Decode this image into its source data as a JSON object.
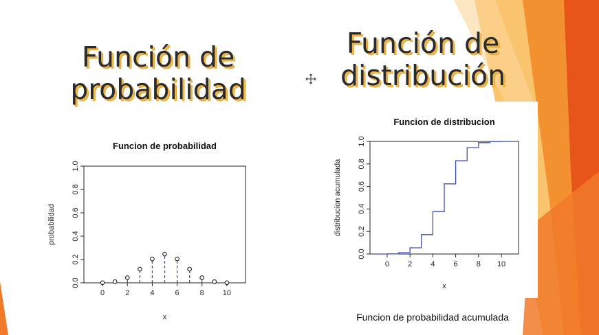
{
  "slide": {
    "title_left_lines": [
      "Función de",
      "probabilidad"
    ],
    "title_right_lines": [
      "Función de",
      "distribución"
    ],
    "caption": "Funcion de probabilidad acumulada",
    "colors": {
      "orange": "#f07a2a",
      "dark_orange": "#e8541a",
      "light_orange": "#f9a13c",
      "text": "#2b2b2b",
      "title_shadow": "#f2b84b"
    },
    "cursor_icon": "move-cursor-icon"
  },
  "chart_data": [
    {
      "type": "scatter",
      "title": "Funcion de probabilidad",
      "xlabel": "x",
      "ylabel": "probabilidad",
      "x": [
        0,
        1,
        2,
        3,
        4,
        5,
        6,
        7,
        8,
        9,
        10
      ],
      "y": [
        0.001,
        0.01,
        0.044,
        0.117,
        0.205,
        0.246,
        0.205,
        0.117,
        0.044,
        0.01,
        0.001
      ],
      "xlim": [
        -1.5,
        11.5
      ],
      "ylim": [
        0,
        1.0
      ],
      "xticks": [
        0,
        2,
        4,
        6,
        8,
        10
      ],
      "yticks": [
        0.0,
        0.2,
        0.4,
        0.6,
        0.8,
        1.0
      ],
      "ytick_labels": [
        "0.0",
        "0.2",
        "0.4",
        "0.6",
        "0.8",
        "1.0"
      ],
      "xtick_labels": [
        "0",
        "2",
        "4",
        "6",
        "8",
        "10"
      ],
      "vertical_dashed_lines": true,
      "line_color": "#3a4fc1",
      "grid": false
    },
    {
      "type": "line",
      "step": true,
      "title": "Funcion de distribucion",
      "xlabel": "x",
      "ylabel": "distribucion acumulada",
      "x": [
        -1,
        0,
        1,
        2,
        3,
        4,
        5,
        6,
        7,
        8,
        9,
        10,
        11
      ],
      "y": [
        0.0,
        0.001,
        0.011,
        0.055,
        0.172,
        0.377,
        0.623,
        0.828,
        0.945,
        0.989,
        0.999,
        1.0,
        1.0
      ],
      "xlim": [
        -1.5,
        11.5
      ],
      "ylim": [
        0,
        1.0
      ],
      "xticks": [
        0,
        2,
        4,
        6,
        8,
        10
      ],
      "yticks": [
        0.0,
        0.2,
        0.4,
        0.6,
        0.8,
        1.0
      ],
      "ytick_labels": [
        "0.0",
        "0.2",
        "0.4",
        "0.6",
        "0.8",
        "1.0"
      ],
      "xtick_labels": [
        "0",
        "2",
        "4",
        "6",
        "8",
        "10"
      ],
      "line_color": "#3a4fc1",
      "grid": false
    }
  ]
}
